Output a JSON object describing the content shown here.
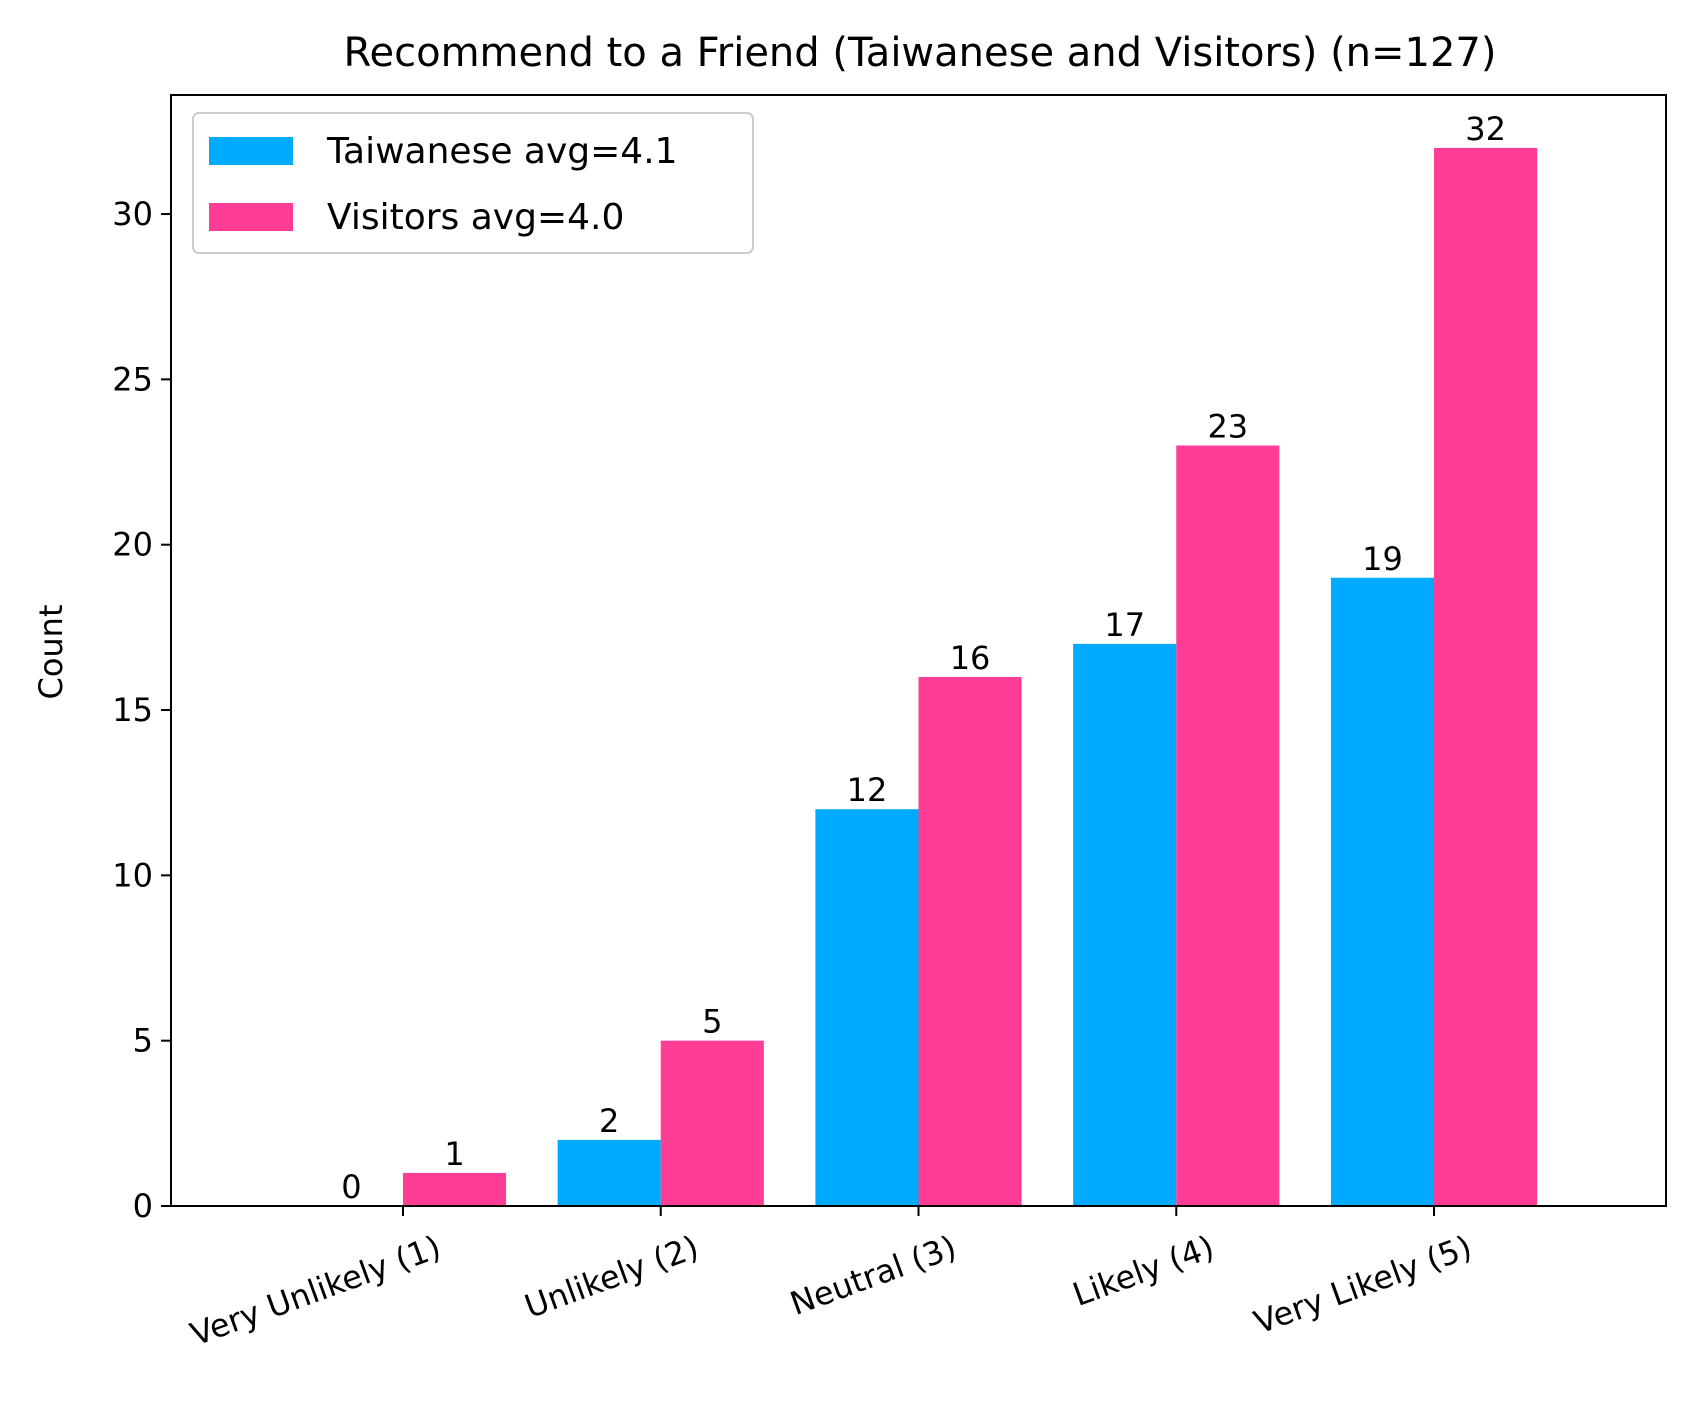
{
  "chart_data": {
    "type": "bar",
    "title": "Recommend to a Friend (Taiwanese and Visitors) (n=127)",
    "xlabel": "",
    "ylabel": "Count",
    "categories": [
      "Very Unlikely (1)",
      "Unlikely (2)",
      "Neutral (3)",
      "Likely (4)",
      "Very Likely (5)"
    ],
    "series": [
      {
        "name": "Taiwanese avg=4.1",
        "values": [
          0,
          2,
          12,
          17,
          19
        ],
        "color": "#00aaff"
      },
      {
        "name": "Visitors avg=4.0",
        "values": [
          1,
          5,
          16,
          23,
          32
        ],
        "color": "#ff3d94"
      }
    ],
    "ylim": [
      0,
      33.6
    ],
    "yticks": [
      0,
      5,
      10,
      15,
      20,
      25,
      30
    ],
    "legend": "top-left",
    "grid": false,
    "xtick_rotation": -20
  }
}
